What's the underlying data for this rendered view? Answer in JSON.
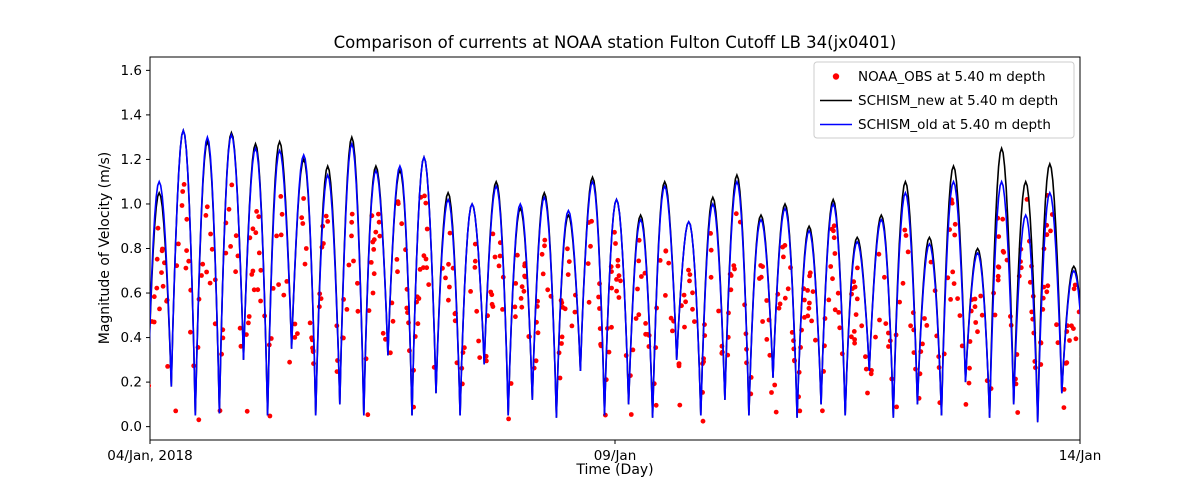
{
  "chart_data": {
    "type": "line+scatter",
    "title": "Comparison of currents at NOAA station Fulton Cutoff LB 34(jx0401)",
    "xlabel": "Time (Day)",
    "ylabel": "Magnitude of Velocity (m/s)",
    "xlim": [
      4,
      14
    ],
    "ylim": [
      -0.06,
      1.66
    ],
    "xticks": [
      {
        "value": 4,
        "label": "04/Jan, 2018"
      },
      {
        "value": 9,
        "label": "09/Jan"
      },
      {
        "value": 14,
        "label": "14/Jan"
      }
    ],
    "yticks": [
      0.0,
      0.2,
      0.4,
      0.6,
      0.8,
      1.0,
      1.2,
      1.4,
      1.6
    ],
    "grid": false,
    "legend_position": "upper right",
    "tide": {
      "t_start": 3.97,
      "peak_interval_days": 0.2588,
      "valleys": [
        0.05,
        0.18,
        0.05,
        0.06,
        0.3,
        0.05,
        0.35,
        0.05,
        0.1,
        0.05,
        0.32,
        0.05,
        0.15,
        0.05,
        0.28,
        0.05,
        0.12,
        0.04,
        0.25,
        0.05,
        0.1,
        0.04,
        0.3,
        0.05,
        0.12,
        0.05,
        0.22,
        0.04,
        0.1,
        0.05,
        0.25,
        0.04,
        0.1,
        0.05,
        0.2,
        0.04,
        0.1,
        0.02,
        0.15,
        0.05
      ]
    },
    "series": [
      {
        "name": "NOAA_OBS at 5.40 m depth",
        "type": "scatter",
        "color": "#ff0000",
        "marker": "dot",
        "amp_ratio": 0.82,
        "seed": 20180104
      },
      {
        "name": "SCHISM_new at 5.40 m depth",
        "type": "line",
        "color": "#000000",
        "peak_amplitudes": [
          1.05,
          1.33,
          1.28,
          1.32,
          1.27,
          1.28,
          1.2,
          1.17,
          1.3,
          1.17,
          1.15,
          1.21,
          1.05,
          1.0,
          1.1,
          0.98,
          1.05,
          0.95,
          1.12,
          1.02,
          0.95,
          1.1,
          0.92,
          1.03,
          1.13,
          0.95,
          1.0,
          0.9,
          1.02,
          0.85,
          0.95,
          1.1,
          0.85,
          1.17,
          0.8,
          1.25,
          1.1,
          1.18,
          0.72
        ]
      },
      {
        "name": "SCHISM_old at 5.40 m depth",
        "type": "line",
        "color": "#0000ff",
        "peak_amplitudes": [
          1.1,
          1.33,
          1.3,
          1.31,
          1.25,
          1.24,
          1.22,
          1.13,
          1.27,
          1.15,
          1.17,
          1.21,
          1.02,
          1.0,
          1.08,
          1.0,
          1.03,
          0.97,
          1.1,
          1.02,
          0.93,
          1.08,
          0.92,
          1.0,
          1.1,
          0.93,
          0.98,
          0.88,
          1.0,
          0.83,
          0.93,
          1.05,
          0.82,
          1.1,
          0.78,
          1.1,
          0.95,
          1.05,
          0.7
        ]
      }
    ]
  }
}
